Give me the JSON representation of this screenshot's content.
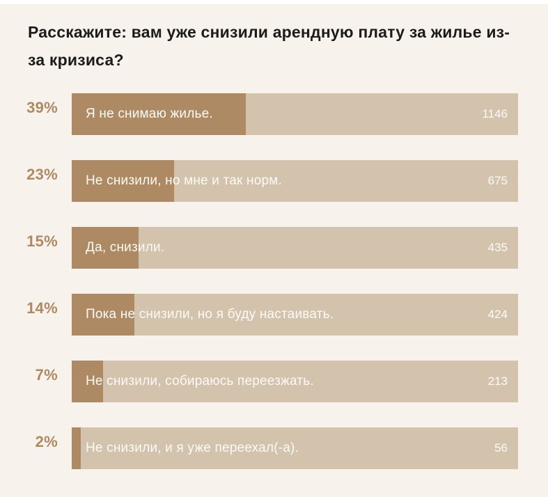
{
  "question": "Расскажите: вам уже снизили арендную плату за жилье из-за кризиса?",
  "colors": {
    "background": "#f7f3ec",
    "bar_fill": "#ae8a64",
    "bar_track": "#d3c2ac",
    "percent_label": "#ad8a63",
    "title_text": "#1d1c1a",
    "bar_text": "#fdfbf6"
  },
  "chart_data": {
    "type": "bar",
    "orientation": "horizontal",
    "title": "Расскажите: вам уже снизили арендную плату за жилье из-за кризиса?",
    "categories": [
      "Я не снимаю жилье.",
      "Не снизили, но мне и так норм.",
      "Да, снизили.",
      "Пока не снизили, но я буду настаивать.",
      "Не снизили, собираюсь переезжать.",
      "Не снизили, и я уже переехал(-а)."
    ],
    "series": [
      {
        "name": "percent",
        "values": [
          39,
          23,
          15,
          14,
          7,
          2
        ]
      },
      {
        "name": "votes",
        "values": [
          1146,
          675,
          435,
          424,
          213,
          56
        ]
      }
    ],
    "xlim": [
      0,
      100
    ],
    "grid": false,
    "legend": false
  },
  "rows": [
    {
      "percent": "39%",
      "label": "Я не снимаю жилье.",
      "count": "1146",
      "fill": 39
    },
    {
      "percent": "23%",
      "label": "Не снизили, но мне и так норм.",
      "count": "675",
      "fill": 23
    },
    {
      "percent": "15%",
      "label": "Да, снизили.",
      "count": "435",
      "fill": 15
    },
    {
      "percent": "14%",
      "label": "Пока не снизили, но я буду настаивать.",
      "count": "424",
      "fill": 14
    },
    {
      "percent": "7%",
      "label": "Не снизили, собираюсь переезжать.",
      "count": "213",
      "fill": 7
    },
    {
      "percent": "2%",
      "label": "Не снизили, и я уже переехал(-а).",
      "count": "56",
      "fill": 2
    }
  ]
}
